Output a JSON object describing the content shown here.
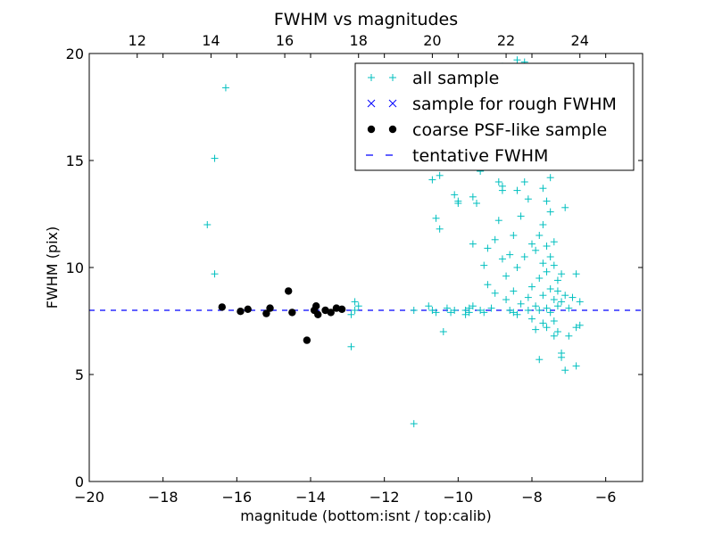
{
  "chart_data": {
    "type": "scatter",
    "title": "FWHM vs magnitudes",
    "xlabel": "magnitude (bottom:isnt / top:calib)",
    "ylabel": "FWHM (pix)",
    "xlim": [
      -20,
      -5
    ],
    "ylim": [
      0,
      20
    ],
    "x_ticks": [
      -20,
      -18,
      -16,
      -14,
      -12,
      -10,
      -8,
      -6
    ],
    "x_tick_labels": [
      "−20",
      "−18",
      "−16",
      "−14",
      "−12",
      "−10",
      "−8",
      "−6"
    ],
    "y_ticks": [
      0,
      5,
      10,
      15,
      20
    ],
    "y_tick_labels": [
      "0",
      "5",
      "10",
      "15",
      "20"
    ],
    "top_axis": {
      "tick_labels": [
        "12",
        "14",
        "16",
        "18",
        "20",
        "22",
        "24"
      ],
      "tick_positions_bottom_units": [
        -18.7,
        -16.7,
        -14.7,
        -12.7,
        -10.7,
        -8.7,
        -6.7
      ]
    },
    "legend": {
      "placement": "top-right",
      "entries": [
        {
          "label": "all sample",
          "marker": "plus",
          "color": "#00bfbf"
        },
        {
          "label": "sample for rough FWHM",
          "marker": "x",
          "color": "#0000ff"
        },
        {
          "label": "coarse PSF-like sample",
          "marker": "dot",
          "color": "#000000"
        },
        {
          "label": "tentative FWHM",
          "marker": "dashed-line",
          "color": "#0000ff"
        }
      ]
    },
    "tentative_fwhm": 8.0,
    "series": [
      {
        "name": "all sample",
        "color": "#00bfbf",
        "marker": "plus",
        "points": [
          [
            -16.3,
            18.4
          ],
          [
            -16.6,
            15.1
          ],
          [
            -16.8,
            12.0
          ],
          [
            -16.6,
            9.7
          ],
          [
            -12.8,
            8.4
          ],
          [
            -12.7,
            8.2
          ],
          [
            -12.9,
            7.8
          ],
          [
            -12.8,
            8.0
          ],
          [
            -12.9,
            6.3
          ],
          [
            -11.2,
            2.7
          ],
          [
            -11.2,
            8.0
          ],
          [
            -10.8,
            8.2
          ],
          [
            -10.7,
            8.0
          ],
          [
            -10.6,
            7.9
          ],
          [
            -10.6,
            12.3
          ],
          [
            -10.5,
            11.8
          ],
          [
            -10.7,
            14.1
          ],
          [
            -10.5,
            14.3
          ],
          [
            -10.4,
            7.0
          ],
          [
            -10.3,
            8.1
          ],
          [
            -10.2,
            7.9
          ],
          [
            -10.1,
            8.0
          ],
          [
            -10.1,
            13.4
          ],
          [
            -10.0,
            13.0
          ],
          [
            -10.0,
            13.1
          ],
          [
            -9.8,
            8.0
          ],
          [
            -9.8,
            7.8
          ],
          [
            -9.7,
            8.1
          ],
          [
            -9.6,
            8.2
          ],
          [
            -9.6,
            11.1
          ],
          [
            -9.7,
            7.9
          ],
          [
            -9.6,
            13.3
          ],
          [
            -9.5,
            13.0
          ],
          [
            -9.4,
            8.0
          ],
          [
            -9.3,
            7.9
          ],
          [
            -9.4,
            14.5
          ],
          [
            -9.3,
            10.1
          ],
          [
            -9.2,
            10.9
          ],
          [
            -9.2,
            9.2
          ],
          [
            -9.1,
            8.1
          ],
          [
            -9.0,
            11.3
          ],
          [
            -9.0,
            8.8
          ],
          [
            -8.9,
            12.2
          ],
          [
            -8.9,
            14.0
          ],
          [
            -8.8,
            13.6
          ],
          [
            -8.8,
            13.8
          ],
          [
            -8.8,
            10.4
          ],
          [
            -8.7,
            8.5
          ],
          [
            -8.7,
            9.6
          ],
          [
            -8.6,
            10.6
          ],
          [
            -8.6,
            8.0
          ],
          [
            -8.5,
            7.9
          ],
          [
            -8.5,
            11.5
          ],
          [
            -8.5,
            8.9
          ],
          [
            -8.4,
            7.8
          ],
          [
            -8.4,
            10.0
          ],
          [
            -8.4,
            13.6
          ],
          [
            -8.3,
            12.4
          ],
          [
            -8.3,
            8.3
          ],
          [
            -8.2,
            14.0
          ],
          [
            -8.2,
            10.5
          ],
          [
            -8.1,
            8.0
          ],
          [
            -8.1,
            8.6
          ],
          [
            -8.1,
            13.2
          ],
          [
            -8.0,
            11.1
          ],
          [
            -8.0,
            9.1
          ],
          [
            -8.0,
            7.6
          ],
          [
            -7.9,
            10.8
          ],
          [
            -7.9,
            8.2
          ],
          [
            -7.9,
            7.1
          ],
          [
            -7.8,
            11.5
          ],
          [
            -7.8,
            9.5
          ],
          [
            -7.8,
            8.0
          ],
          [
            -7.8,
            5.7
          ],
          [
            -7.7,
            13.7
          ],
          [
            -7.7,
            12.0
          ],
          [
            -7.7,
            10.2
          ],
          [
            -7.7,
            8.7
          ],
          [
            -7.7,
            7.4
          ],
          [
            -7.6,
            11.0
          ],
          [
            -7.6,
            9.8
          ],
          [
            -7.6,
            8.1
          ],
          [
            -7.6,
            7.2
          ],
          [
            -7.6,
            13.1
          ],
          [
            -7.5,
            12.6
          ],
          [
            -7.5,
            10.5
          ],
          [
            -7.5,
            9.0
          ],
          [
            -7.5,
            7.9
          ],
          [
            -7.5,
            14.2
          ],
          [
            -7.4,
            11.2
          ],
          [
            -7.4,
            10.1
          ],
          [
            -7.4,
            8.5
          ],
          [
            -7.4,
            7.5
          ],
          [
            -7.4,
            6.8
          ],
          [
            -7.3,
            9.4
          ],
          [
            -7.3,
            8.9
          ],
          [
            -7.3,
            8.2
          ],
          [
            -7.3,
            7.0
          ],
          [
            -7.2,
            6.0
          ],
          [
            -7.2,
            5.8
          ],
          [
            -7.2,
            8.4
          ],
          [
            -7.2,
            9.7
          ],
          [
            -7.1,
            5.2
          ],
          [
            -7.1,
            8.7
          ],
          [
            -7.1,
            12.8
          ],
          [
            -7.0,
            8.1
          ],
          [
            -7.0,
            6.8
          ],
          [
            -6.9,
            8.6
          ],
          [
            -6.8,
            9.7
          ],
          [
            -6.8,
            5.4
          ],
          [
            -6.8,
            7.2
          ],
          [
            -6.7,
            7.3
          ],
          [
            -6.7,
            8.4
          ],
          [
            -8.4,
            19.7
          ],
          [
            -8.2,
            19.6
          ],
          [
            -8.8,
            19.4
          ],
          [
            -8.6,
            18.5
          ],
          [
            -8.3,
            17.8
          ],
          [
            -8.0,
            17.2
          ]
        ]
      },
      {
        "name": "sample for rough FWHM",
        "color": "#0000ff",
        "marker": "x",
        "points": []
      },
      {
        "name": "coarse PSF-like sample",
        "color": "#000000",
        "marker": "dot",
        "points": [
          [
            -16.4,
            8.15
          ],
          [
            -15.9,
            7.95
          ],
          [
            -15.7,
            8.05
          ],
          [
            -15.2,
            7.85
          ],
          [
            -15.1,
            8.1
          ],
          [
            -14.6,
            8.9
          ],
          [
            -14.5,
            7.9
          ],
          [
            -14.1,
            6.6
          ],
          [
            -13.9,
            8.0
          ],
          [
            -13.85,
            8.2
          ],
          [
            -13.8,
            7.8
          ],
          [
            -13.6,
            8.0
          ],
          [
            -13.45,
            7.9
          ],
          [
            -13.3,
            8.1
          ],
          [
            -13.15,
            8.05
          ]
        ]
      }
    ]
  }
}
